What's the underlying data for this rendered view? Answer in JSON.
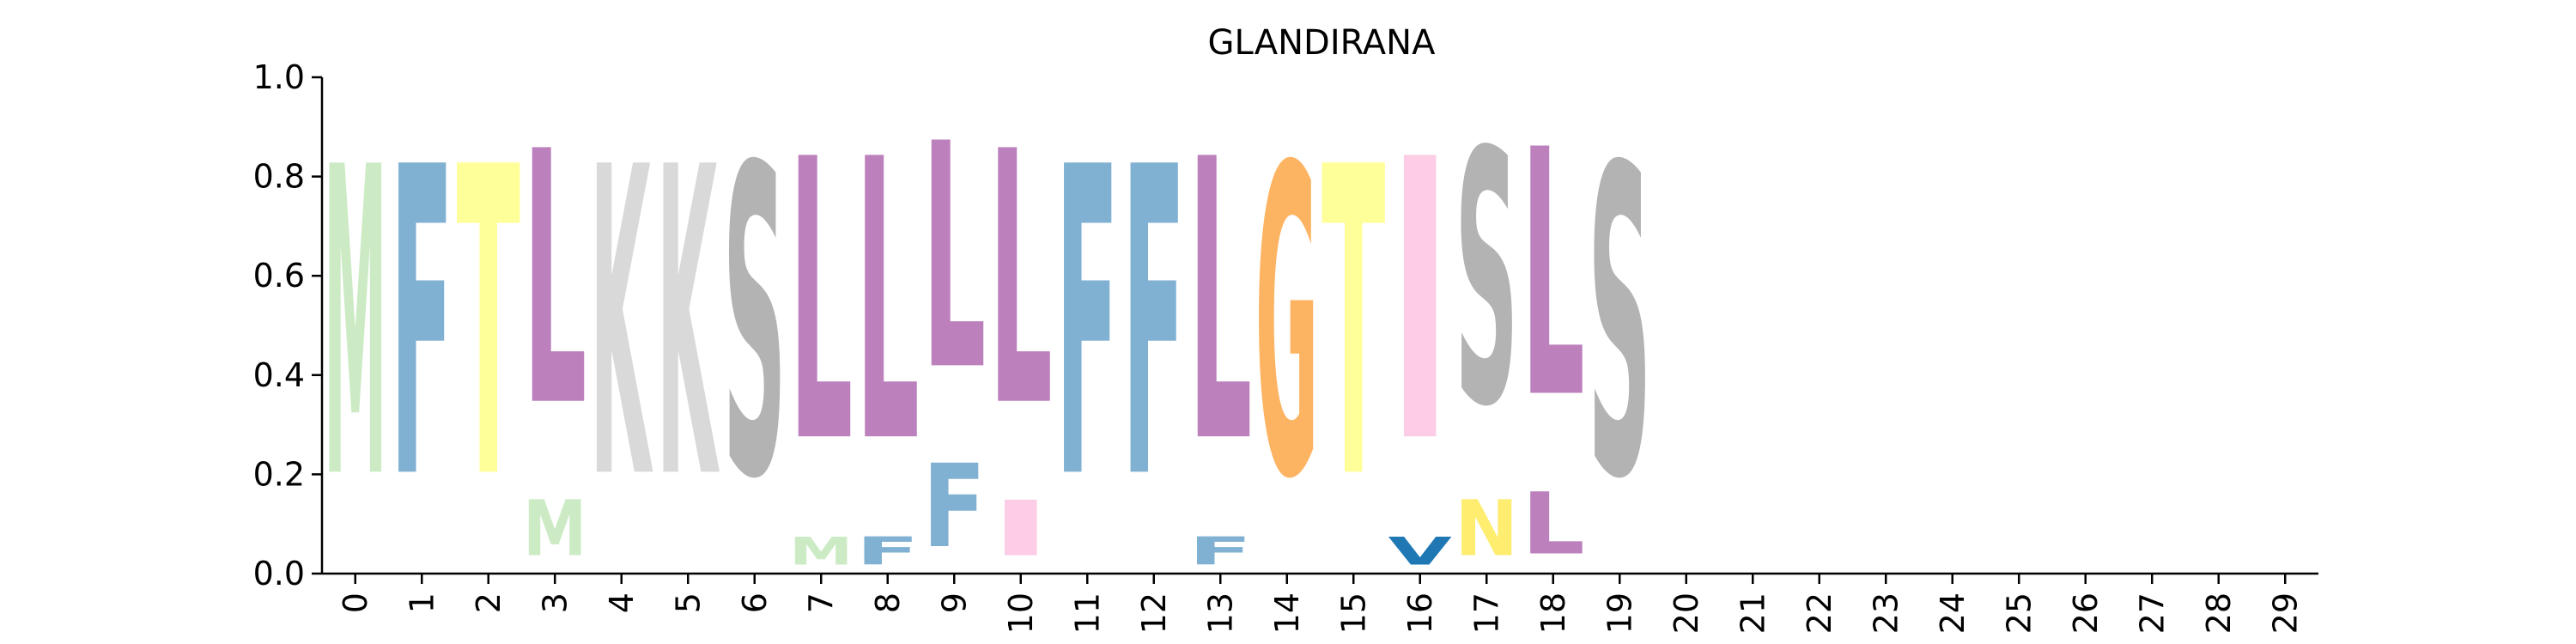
{
  "chart_data": {
    "type": "sequence-logo",
    "title": "GLANDIRANA",
    "xlabel": "",
    "ylabel": "",
    "xlim": [
      -0.5,
      29.5
    ],
    "ylim": [
      0,
      1
    ],
    "x_ticks": [
      "0",
      "1",
      "2",
      "3",
      "4",
      "5",
      "6",
      "7",
      "8",
      "9",
      "10",
      "11",
      "12",
      "13",
      "14",
      "15",
      "16",
      "17",
      "18",
      "19",
      "20",
      "21",
      "22",
      "23",
      "24",
      "25",
      "26",
      "27",
      "28",
      "29"
    ],
    "y_ticks": [
      "0.0",
      "0.2",
      "0.4",
      "0.6",
      "0.8",
      "1.0"
    ],
    "colors": {
      "M": "#ccebc5",
      "F": "#80b1d3",
      "T": "#ffff99",
      "L": "#bc80bd",
      "K": "#d9d9d9",
      "S": "#b3b3b3",
      "G": "#fdb462",
      "I": "#fccde5",
      "V": "#1f78b4",
      "N": "#ffed6f"
    },
    "positions": [
      {
        "pos": 0,
        "letters": [
          {
            "char": "M",
            "value": 1.0
          }
        ]
      },
      {
        "pos": 1,
        "letters": [
          {
            "char": "F",
            "value": 1.0
          }
        ]
      },
      {
        "pos": 2,
        "letters": [
          {
            "char": "T",
            "value": 1.0
          }
        ]
      },
      {
        "pos": 3,
        "letters": [
          {
            "char": "M",
            "value": 0.18
          },
          {
            "char": "L",
            "value": 0.82
          }
        ]
      },
      {
        "pos": 4,
        "letters": [
          {
            "char": "K",
            "value": 1.0
          }
        ]
      },
      {
        "pos": 5,
        "letters": [
          {
            "char": "K",
            "value": 1.0
          }
        ]
      },
      {
        "pos": 6,
        "letters": [
          {
            "char": "S",
            "value": 1.0
          }
        ]
      },
      {
        "pos": 7,
        "letters": [
          {
            "char": "M",
            "value": 0.09
          },
          {
            "char": "L",
            "value": 0.91
          }
        ]
      },
      {
        "pos": 8,
        "letters": [
          {
            "char": "F",
            "value": 0.09
          },
          {
            "char": "L",
            "value": 0.91
          }
        ]
      },
      {
        "pos": 9,
        "letters": [
          {
            "char": "F",
            "value": 0.27
          },
          {
            "char": "L",
            "value": 0.73
          }
        ]
      },
      {
        "pos": 10,
        "letters": [
          {
            "char": "I",
            "value": 0.18
          },
          {
            "char": "L",
            "value": 0.82
          }
        ]
      },
      {
        "pos": 11,
        "letters": [
          {
            "char": "F",
            "value": 1.0
          }
        ]
      },
      {
        "pos": 12,
        "letters": [
          {
            "char": "F",
            "value": 1.0
          }
        ]
      },
      {
        "pos": 13,
        "letters": [
          {
            "char": "F",
            "value": 0.09
          },
          {
            "char": "L",
            "value": 0.91
          }
        ]
      },
      {
        "pos": 14,
        "letters": [
          {
            "char": "G",
            "value": 1.0
          }
        ]
      },
      {
        "pos": 15,
        "letters": [
          {
            "char": "T",
            "value": 1.0
          }
        ]
      },
      {
        "pos": 16,
        "letters": [
          {
            "char": "V",
            "value": 0.09
          },
          {
            "char": "I",
            "value": 0.91
          }
        ]
      },
      {
        "pos": 17,
        "letters": [
          {
            "char": "N",
            "value": 0.18
          },
          {
            "char": "S",
            "value": 0.82
          }
        ]
      },
      {
        "pos": 18,
        "letters": [
          {
            "char": "S",
            "value": 0.0
          },
          {
            "char": "L",
            "value": 0.2
          },
          {
            "char": "L",
            "value": 0.8
          }
        ]
      },
      {
        "pos": 19,
        "letters": [
          {
            "char": "S",
            "value": 1.0
          }
        ]
      }
    ]
  }
}
